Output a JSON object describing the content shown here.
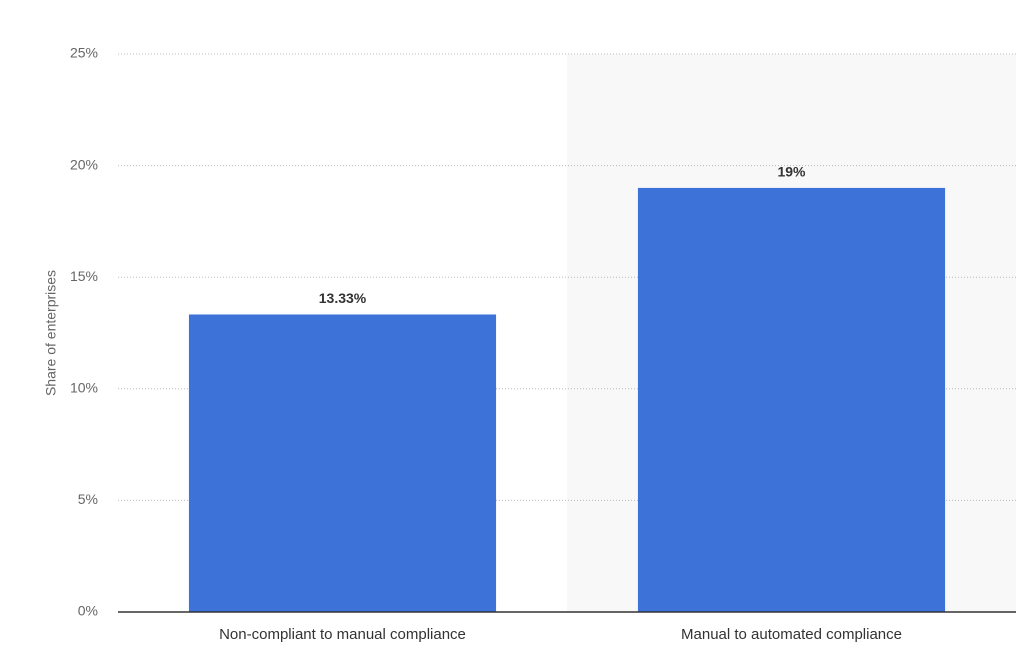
{
  "chart_data": {
    "type": "bar",
    "y_axis_label": "Share of enterprises",
    "categories": [
      "Non-compliant to manual compliance",
      "Manual to automated compliance"
    ],
    "values": [
      13.33,
      19
    ],
    "value_labels": [
      "13.33%",
      "19%"
    ],
    "color": "#3d73d8",
    "ylim": [
      0,
      25
    ],
    "yticks": [
      {
        "value": 0,
        "label": "0%"
      },
      {
        "value": 5,
        "label": "5%"
      },
      {
        "value": 10,
        "label": "10%"
      },
      {
        "value": 15,
        "label": "15%"
      },
      {
        "value": 20,
        "label": "20%"
      },
      {
        "value": 25,
        "label": "25%"
      }
    ],
    "grid": true
  }
}
